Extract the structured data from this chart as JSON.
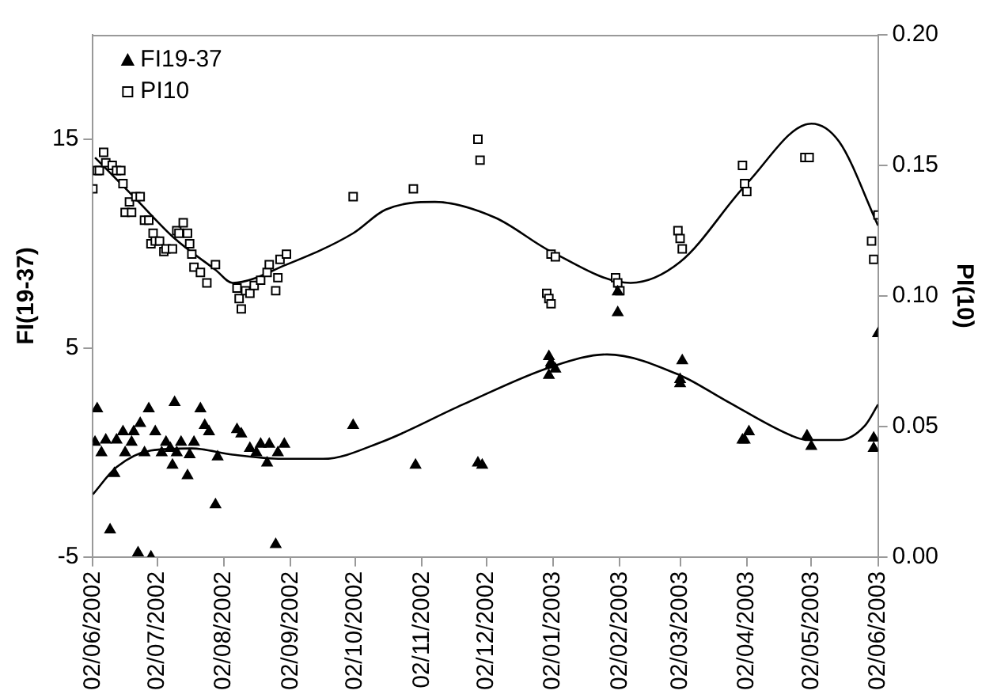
{
  "chart_data": {
    "type": "scatter",
    "ylabel": "FI(19-37)",
    "y2label": "PI(10)",
    "legend": "top left",
    "grid": false,
    "xlim": [
      "2002-06-02",
      "2003-06-02"
    ],
    "xticks": [
      {
        "value": "2002-06-02",
        "label": "02/06/2002"
      },
      {
        "value": "2002-07-02",
        "label": "02/07/2002"
      },
      {
        "value": "2002-08-02",
        "label": "02/08/2002"
      },
      {
        "value": "2002-09-02",
        "label": "02/09/2002"
      },
      {
        "value": "2002-10-02",
        "label": "02/10/2002"
      },
      {
        "value": "2002-11-02",
        "label": "02/11/2002"
      },
      {
        "value": "2002-12-02",
        "label": "02/12/2002"
      },
      {
        "value": "2003-01-02",
        "label": "02/01/2003"
      },
      {
        "value": "2003-02-02",
        "label": "02/02/2003"
      },
      {
        "value": "2003-03-02",
        "label": "02/03/2003"
      },
      {
        "value": "2003-04-02",
        "label": "02/04/2003"
      },
      {
        "value": "2003-05-02",
        "label": "02/05/2003"
      },
      {
        "value": "2003-06-02",
        "label": "02/06/2003"
      }
    ],
    "ylim": [
      -5,
      20
    ],
    "yticks": [
      -5,
      5,
      15
    ],
    "y2lim": [
      0,
      0.2
    ],
    "y2ticks": [
      {
        "value": 0,
        "label": "0.00"
      },
      {
        "value": 0.05,
        "label": "0.05"
      },
      {
        "value": 0.1,
        "label": "0.10"
      },
      {
        "value": 0.15,
        "label": "0.15"
      },
      {
        "value": 0.2,
        "label": "0.20"
      }
    ],
    "series": [
      {
        "name": "FI19-37",
        "marker": "triangle",
        "color": "#000000",
        "x": [
          "2002-06-03",
          "2002-06-04",
          "2002-06-06",
          "2002-06-08",
          "2002-06-10",
          "2002-06-12",
          "2002-06-13",
          "2002-06-16",
          "2002-06-17",
          "2002-06-20",
          "2002-06-21",
          "2002-06-23",
          "2002-06-24",
          "2002-06-26",
          "2002-06-28",
          "2002-06-29",
          "2002-07-01",
          "2002-07-04",
          "2002-07-06",
          "2002-07-08",
          "2002-07-09",
          "2002-07-10",
          "2002-07-11",
          "2002-07-13",
          "2002-07-16",
          "2002-07-17",
          "2002-07-19",
          "2002-07-22",
          "2002-07-24",
          "2002-07-26",
          "2002-07-29",
          "2002-07-30",
          "2002-08-08",
          "2002-08-10",
          "2002-08-14",
          "2002-08-17",
          "2002-08-19",
          "2002-08-22",
          "2002-08-23",
          "2002-08-26",
          "2002-08-27",
          "2002-08-30",
          "2002-10-01",
          "2002-10-30",
          "2002-11-28",
          "2002-11-30",
          "2002-12-31",
          "2003-01-01",
          "2003-01-01",
          "2002-12-31",
          "2003-01-03",
          "2003-02-01",
          "2003-02-01",
          "2003-03-03",
          "2003-03-02",
          "2003-03-02",
          "2003-04-03",
          "2003-03-31",
          "2003-04-01",
          "2003-04-30",
          "2003-05-02",
          "2003-05-31",
          "2003-05-31",
          "2003-06-02"
        ],
        "values": [
          0.5,
          2.1,
          0.0,
          0.6,
          -3.7,
          -1.0,
          0.6,
          1.0,
          0.0,
          0.5,
          1.0,
          -4.8,
          1.4,
          0.0,
          2.1,
          -5.0,
          1.0,
          0.0,
          0.5,
          0.2,
          -0.6,
          2.4,
          0.0,
          0.5,
          -1.1,
          -0.1,
          0.5,
          2.1,
          1.3,
          1.0,
          -2.5,
          -0.2,
          1.1,
          0.9,
          0.2,
          0.0,
          0.4,
          -0.5,
          0.4,
          -4.4,
          0.0,
          0.4,
          1.3,
          -0.6,
          -0.5,
          -0.6,
          4.6,
          4.3,
          4.2,
          3.7,
          4.0,
          7.7,
          6.7,
          4.4,
          3.5,
          3.3,
          1.0,
          0.6,
          0.6,
          0.8,
          0.3,
          0.2,
          0.7,
          5.7
        ]
      },
      {
        "name": "PI10",
        "marker": "square",
        "axis": "y2",
        "color": "#000000",
        "x": [
          "2002-06-02",
          "2002-06-04",
          "2002-06-05",
          "2002-06-07",
          "2002-06-08",
          "2002-06-11",
          "2002-06-13",
          "2002-06-15",
          "2002-06-16",
          "2002-06-17",
          "2002-06-19",
          "2002-06-20",
          "2002-06-22",
          "2002-06-24",
          "2002-06-26",
          "2002-06-28",
          "2002-06-29",
          "2002-06-30",
          "2002-07-01",
          "2002-07-03",
          "2002-07-05",
          "2002-07-06",
          "2002-07-09",
          "2002-07-11",
          "2002-07-12",
          "2002-07-14",
          "2002-07-16",
          "2002-07-17",
          "2002-07-18",
          "2002-07-19",
          "2002-07-22",
          "2002-07-25",
          "2002-07-29",
          "2002-08-08",
          "2002-08-09",
          "2002-08-10",
          "2002-08-12",
          "2002-08-14",
          "2002-08-16",
          "2002-08-19",
          "2002-08-22",
          "2002-08-23",
          "2002-08-26",
          "2002-08-27",
          "2002-08-28",
          "2002-08-31",
          "2002-10-01",
          "2002-10-29",
          "2002-11-28",
          "2002-11-29",
          "2003-01-01",
          "2003-01-03",
          "2002-12-30",
          "2002-12-31",
          "2003-01-01",
          "2003-01-31",
          "2003-02-01",
          "2003-02-02",
          "2003-03-01",
          "2003-03-02",
          "2003-03-03",
          "2003-03-31",
          "2003-04-01",
          "2003-04-02",
          "2003-04-29",
          "2003-05-01",
          "2003-05-30",
          "2003-05-31",
          "2003-06-02"
        ],
        "values": [
          0.141,
          0.148,
          0.148,
          0.155,
          0.151,
          0.15,
          0.148,
          0.148,
          0.143,
          0.132,
          0.136,
          0.132,
          0.138,
          0.138,
          0.129,
          0.129,
          0.12,
          0.124,
          0.121,
          0.121,
          0.117,
          0.118,
          0.118,
          0.125,
          0.124,
          0.128,
          0.124,
          0.12,
          0.116,
          0.111,
          0.109,
          0.105,
          0.112,
          0.103,
          0.099,
          0.095,
          0.102,
          0.101,
          0.104,
          0.106,
          0.109,
          0.112,
          0.102,
          0.107,
          0.114,
          0.116,
          0.138,
          0.141,
          0.16,
          0.152,
          0.116,
          0.115,
          0.101,
          0.099,
          0.097,
          0.107,
          0.105,
          0.102,
          0.125,
          0.122,
          0.118,
          0.15,
          0.143,
          0.14,
          0.153,
          0.153,
          0.121,
          0.114,
          0.131
        ]
      },
      {
        "type": "line",
        "marker": "none",
        "color": "#000000",
        "x": [
          "2002-06-02",
          "2002-06-13",
          "2002-06-29",
          "2002-07-18",
          "2002-08-06",
          "2002-08-29",
          "2002-09-17",
          "2002-10-14",
          "2002-11-21",
          "2003-01-01",
          "2003-01-27",
          "2003-03-02",
          "2003-03-23",
          "2003-04-23",
          "2003-04-30",
          "2003-05-15",
          "2003-05-27",
          "2003-06-02"
        ],
        "values": [
          -2.0,
          -0.7,
          0.1,
          0.2,
          -0.1,
          -0.3,
          -0.3,
          0.5,
          2.3,
          4.1,
          4.7,
          3.7,
          2.5,
          0.8,
          0.6,
          0.6,
          1.3,
          2.3
        ]
      },
      {
        "type": "line",
        "marker": "none",
        "axis": "y2",
        "color": "#000000",
        "x": [
          "2002-06-03",
          "2002-06-21",
          "2002-07-10",
          "2002-07-29",
          "2002-08-06",
          "2002-08-31",
          "2002-10-01",
          "2002-10-16",
          "2002-11-08",
          "2002-12-06",
          "2003-01-01",
          "2003-02-07",
          "2003-03-02",
          "2003-04-02",
          "2003-05-02",
          "2003-05-15",
          "2003-06-02"
        ],
        "values": [
          0.153,
          0.138,
          0.122,
          0.11,
          0.105,
          0.112,
          0.124,
          0.133,
          0.136,
          0.13,
          0.117,
          0.105,
          0.113,
          0.143,
          0.166,
          0.159,
          0.127
        ]
      }
    ]
  }
}
